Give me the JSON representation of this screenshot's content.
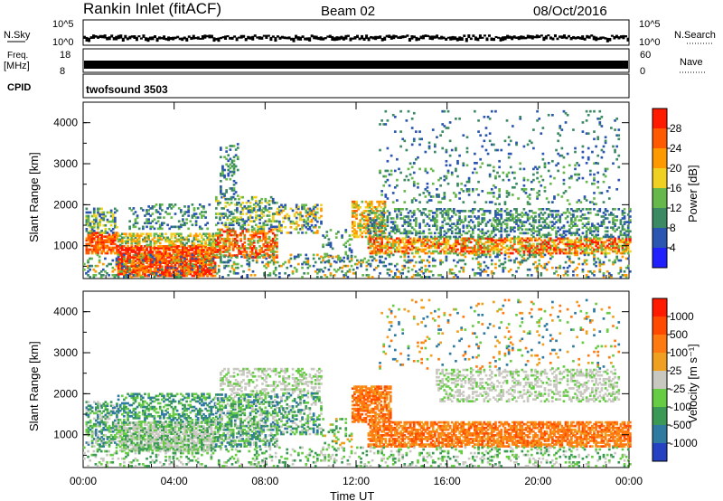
{
  "header": {
    "station": "Rankin Inlet (fitACF)",
    "beam": "Beam 02",
    "date": "08/Oct/2016"
  },
  "noise_panel": {
    "left_label": "N.Sky",
    "left_ticks": [
      "10^5",
      "10^0"
    ],
    "right_label": "N.Search",
    "right_ticks": [
      "10^5",
      "10^0"
    ]
  },
  "freq_panel": {
    "left_label_1": "Freq.",
    "left_label_2": "[MHz]",
    "left_ticks": [
      "18",
      "8"
    ],
    "right_label": "Nave",
    "right_ticks": [
      "60",
      "0"
    ]
  },
  "cpid_panel": {
    "label": "CPID",
    "value": "twofsound 3503"
  },
  "x_axis": {
    "label": "Time UT",
    "ticks": [
      "00:00",
      "04:00",
      "08:00",
      "12:00",
      "16:00",
      "20:00",
      "00:00"
    ]
  },
  "chart_data": [
    {
      "type": "heatmap",
      "panel": "power",
      "ylabel": "Slant Range [km]",
      "y_ticks": [
        "1000",
        "2000",
        "3000",
        "4000"
      ],
      "ylim": [
        200,
        4500
      ],
      "xlim_hours": [
        0,
        24
      ],
      "colorbar_label": "Power [dB]",
      "colorbar_ticks": [
        "28",
        "24",
        "20",
        "16",
        "12",
        "8",
        "4"
      ],
      "colors": [
        "#2020ff",
        "#2a55b0",
        "#3c8a64",
        "#66b84a",
        "#f0d020",
        "#ff9900",
        "#ff5a00",
        "#ff1a00"
      ]
    },
    {
      "type": "heatmap",
      "panel": "velocity",
      "ylabel": "Slant Range [km]",
      "y_ticks": [
        "1000",
        "2000",
        "3000",
        "4000"
      ],
      "ylim": [
        200,
        4500
      ],
      "xlim_hours": [
        0,
        24
      ],
      "colorbar_label": "Velocity [m s⁻¹]",
      "colorbar_ticks": [
        "1000",
        "500",
        "100",
        "25",
        "-25",
        "-100",
        "-500",
        "-1000"
      ],
      "colors": [
        "#2540c0",
        "#2f7aa0",
        "#3a9a55",
        "#66cc44",
        "#c8c8c0",
        "#f0a020",
        "#ff7a10",
        "#ff4a00",
        "#ff1a00"
      ]
    }
  ]
}
